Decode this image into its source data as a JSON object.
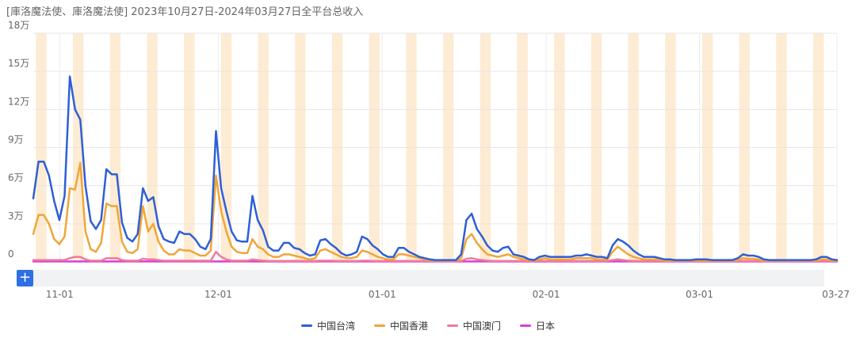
{
  "title": "[庫洛魔法使、庫洛魔法使]  2023年10月27日-2024年03月27日全平台总收入",
  "zoom_label": "+",
  "chart_data": {
    "type": "line",
    "title": "[庫洛魔法使、庫洛魔法使]  2023年10月27日-2024年03月27日全平台总收入",
    "ylim": [
      0,
      180000
    ],
    "y_ticks": [
      0,
      30000,
      60000,
      90000,
      120000,
      150000,
      180000
    ],
    "y_tick_labels": [
      "0",
      "3万",
      "6万",
      "9万",
      "12万",
      "15万",
      "18万"
    ],
    "x_tick_labels": [
      "11-01",
      "12-01",
      "01-01",
      "02-01",
      "03-01",
      "03-27"
    ],
    "x_tick_dates": [
      "2023-11-01",
      "2023-12-01",
      "2024-01-01",
      "2024-02-01",
      "2024-03-01",
      "2024-03-27"
    ],
    "x_start": "2023-10-27",
    "x_end": "2024-03-27",
    "grid": true,
    "legend_position": "bottom",
    "weekend_bands": {
      "color": "#fdebd3",
      "days": [
        "Sat",
        "Sun"
      ]
    },
    "series": [
      {
        "name": "中国台湾",
        "color": "#2e5fd6",
        "values": [
          50000,
          79000,
          79000,
          68000,
          48000,
          33000,
          52000,
          146000,
          120000,
          112000,
          60000,
          32000,
          26000,
          33000,
          73000,
          69000,
          69000,
          31000,
          19000,
          16000,
          22000,
          58000,
          48000,
          51000,
          28000,
          18000,
          16000,
          15000,
          24000,
          22000,
          22000,
          18000,
          12000,
          10000,
          18000,
          103000,
          58000,
          40000,
          24000,
          17000,
          16000,
          16000,
          52000,
          33000,
          25000,
          12000,
          9000,
          9000,
          15000,
          15000,
          11000,
          10000,
          7000,
          5000,
          6000,
          17000,
          18000,
          14000,
          11000,
          7000,
          5000,
          6000,
          8000,
          20000,
          18000,
          13000,
          10000,
          6000,
          4000,
          4000,
          11000,
          11000,
          8000,
          6000,
          4000,
          3000,
          2000,
          1500,
          1500,
          1500,
          1500,
          1500,
          6000,
          33000,
          38000,
          26000,
          20000,
          13000,
          9000,
          8000,
          11000,
          12000,
          6000,
          5000,
          4000,
          2000,
          1500,
          4000,
          5000,
          4000,
          4000,
          4000,
          4000,
          4000,
          5000,
          5000,
          6000,
          5000,
          4000,
          4000,
          3000,
          13000,
          18000,
          16000,
          13000,
          9000,
          6000,
          4000,
          4000,
          4000,
          3000,
          2000,
          2000,
          1500,
          1500,
          1500,
          1500,
          2000,
          2000,
          2000,
          1500,
          1500,
          1500,
          1500,
          1500,
          3000,
          6000,
          5000,
          5000,
          4000,
          2000,
          1500,
          1500,
          1500,
          1500,
          1500,
          1500,
          1500,
          1500,
          1500,
          2000,
          4000,
          4000,
          2000,
          1500
        ]
      },
      {
        "name": "中国香港",
        "color": "#f2a536",
        "values": [
          22000,
          37000,
          37000,
          30000,
          18000,
          14000,
          20000,
          58000,
          57000,
          78000,
          24000,
          10000,
          8000,
          15000,
          46000,
          44000,
          44000,
          16000,
          8000,
          7000,
          10000,
          44000,
          24000,
          30000,
          16000,
          9000,
          6000,
          6000,
          10000,
          9000,
          9000,
          7000,
          5000,
          5000,
          9000,
          68000,
          40000,
          24000,
          12000,
          8000,
          7000,
          7000,
          18000,
          12000,
          10000,
          6000,
          4000,
          4000,
          6000,
          6000,
          5000,
          4000,
          3000,
          2000,
          3000,
          9000,
          10000,
          8000,
          6000,
          4000,
          3000,
          3000,
          4000,
          9000,
          8000,
          6000,
          4000,
          3000,
          2000,
          2000,
          6000,
          6000,
          5000,
          4000,
          3000,
          2000,
          1500,
          1000,
          1000,
          1000,
          1000,
          1000,
          3000,
          18000,
          22000,
          15000,
          10000,
          6000,
          5000,
          4000,
          5000,
          6000,
          4000,
          3000,
          2000,
          1500,
          1000,
          2000,
          3000,
          2000,
          2000,
          2000,
          2000,
          2000,
          3000,
          3000,
          3000,
          3000,
          2000,
          2000,
          2000,
          8000,
          12000,
          9000,
          6000,
          4000,
          3000,
          2000,
          2000,
          2000,
          2000,
          1000,
          1000,
          1000,
          1000,
          1000,
          1000,
          1000,
          1000,
          1000,
          1000,
          1000,
          1000,
          1000,
          1000,
          1500,
          3000,
          2500,
          2500,
          2000,
          1000,
          1000,
          1000,
          1000,
          1000,
          1000,
          1000,
          1000,
          1000,
          1000,
          1000,
          2000,
          2000,
          1000,
          1000
        ]
      },
      {
        "name": "中国澳门",
        "color": "#f07a9a",
        "values": [
          1500,
          1500,
          1500,
          1500,
          1500,
          1500,
          1500,
          3000,
          4000,
          4000,
          2000,
          1000,
          1000,
          1000,
          3000,
          3000,
          3000,
          1500,
          1000,
          1000,
          1000,
          2500,
          2000,
          2000,
          1500,
          1000,
          1000,
          1000,
          1000,
          1000,
          1000,
          1000,
          1000,
          1000,
          1000,
          8000,
          4000,
          2000,
          1000,
          1000,
          1000,
          1000,
          2000,
          1500,
          1000,
          800,
          800,
          800,
          800,
          800,
          800,
          800,
          800,
          800,
          800,
          1000,
          1000,
          1000,
          800,
          800,
          800,
          800,
          800,
          1000,
          1000,
          800,
          800,
          800,
          800,
          800,
          800,
          800,
          800,
          800,
          800,
          800,
          800,
          800,
          800,
          800,
          800,
          800,
          800,
          2500,
          3000,
          2000,
          1500,
          1000,
          800,
          800,
          800,
          800,
          800,
          800,
          800,
          800,
          800,
          800,
          800,
          800,
          800,
          800,
          800,
          800,
          800,
          800,
          800,
          800,
          800,
          800,
          800,
          1500,
          2000,
          1500,
          1000,
          800,
          800,
          800,
          800,
          800,
          800,
          800,
          800,
          800,
          800,
          800,
          800,
          800,
          800,
          800,
          800,
          800,
          800,
          800,
          800,
          800,
          800,
          800,
          800,
          800,
          800,
          800,
          800,
          800,
          800,
          800,
          800,
          800,
          800,
          800,
          800,
          800,
          800,
          800,
          800
        ]
      },
      {
        "name": "日本",
        "color": "#d63fd6",
        "values": [
          400,
          400,
          400,
          400,
          400,
          400,
          400,
          400,
          400,
          400,
          400,
          400,
          400,
          400,
          400,
          400,
          400,
          400,
          400,
          400,
          400,
          400,
          400,
          400,
          400,
          400,
          400,
          400,
          400,
          400,
          400,
          400,
          400,
          400,
          400,
          400,
          400,
          400,
          400,
          400,
          400,
          400,
          400,
          400,
          400,
          400,
          400,
          400,
          400,
          400,
          400,
          400,
          400,
          400,
          400,
          400,
          400,
          400,
          400,
          400,
          400,
          400,
          400,
          400,
          400,
          400,
          400,
          400,
          400,
          400,
          400,
          400,
          400,
          400,
          400,
          400,
          400,
          400,
          400,
          400,
          400,
          400,
          400,
          400,
          400,
          400,
          400,
          400,
          400,
          400,
          400,
          400,
          400,
          400,
          400,
          400,
          400,
          400,
          400,
          400,
          400,
          400,
          400,
          400,
          400,
          400,
          400,
          400,
          400,
          400,
          400,
          400,
          400,
          400,
          400,
          400,
          400,
          400,
          400,
          400,
          400,
          400,
          400,
          400,
          400,
          400,
          400,
          400,
          400,
          400,
          400,
          400,
          400,
          400,
          400,
          400,
          400,
          400,
          400,
          400,
          400,
          400,
          400,
          400,
          400,
          400,
          400,
          400,
          400,
          400,
          400,
          400,
          400,
          400,
          400,
          400,
          400
        ]
      }
    ]
  }
}
